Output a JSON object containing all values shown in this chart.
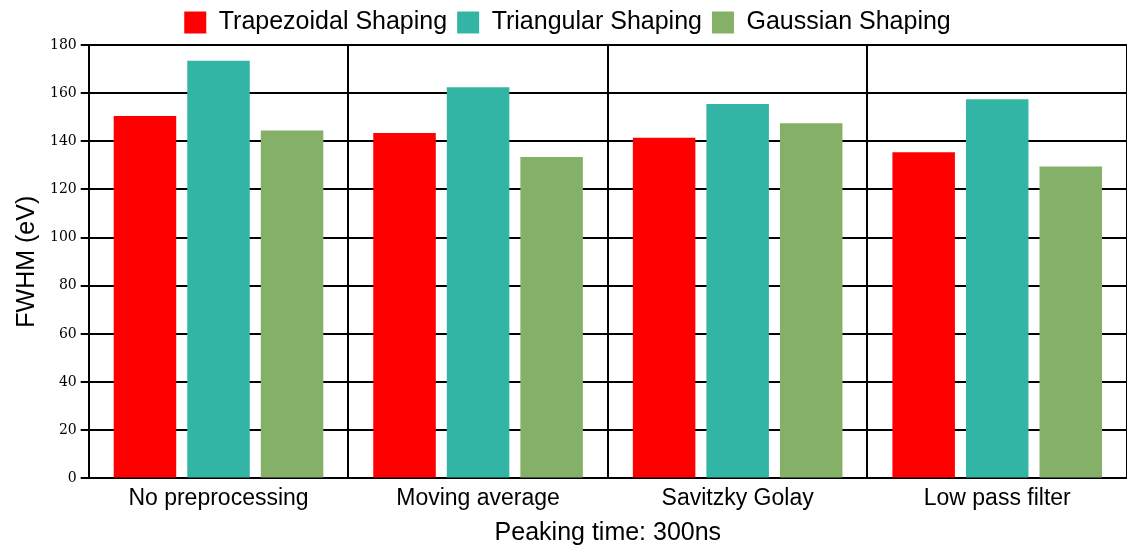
{
  "chart_data": {
    "type": "bar",
    "xlabel": "Peaking time: 300ns",
    "ylabel": "FWHM (eV)",
    "categories": [
      "No preprocessing",
      "Moving average",
      "Savitzky Golay",
      "Low pass filter"
    ],
    "series": [
      {
        "name": "Trapezoidal Shaping",
        "color": "#ff0000",
        "values": [
          150.5,
          143.5,
          141.5,
          135.5
        ]
      },
      {
        "name": "Triangular Shaping",
        "color": "#33b5a5",
        "values": [
          173.5,
          162.5,
          155.5,
          157.5
        ]
      },
      {
        "name": "Gaussian Shaping",
        "color": "#84b167",
        "values": [
          144.5,
          133.5,
          147.5,
          129.5
        ]
      }
    ],
    "ylim": [
      0,
      180
    ],
    "yticks": [
      0,
      20,
      40,
      60,
      80,
      100,
      120,
      140,
      160,
      180
    ],
    "grid": true,
    "legend": "top"
  }
}
